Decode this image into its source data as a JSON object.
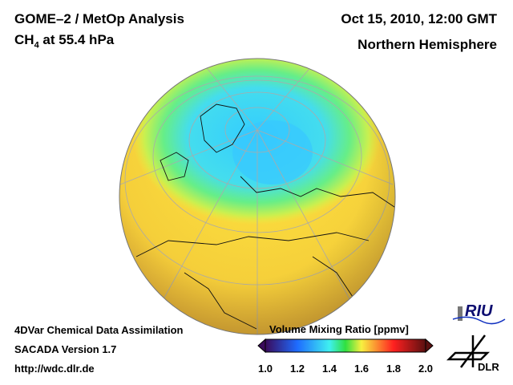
{
  "header": {
    "title_line1": "GOME–2 / MetOp Analysis",
    "species": "CH",
    "species_sub": "4",
    "level": " at 55.4 hPa",
    "date": "Oct 15, 2010, 12:00 GMT",
    "region": "Northern Hemisphere"
  },
  "footer": {
    "line1": "4DVar Chemical Data Assimilation",
    "line2": "SACADA Version 1.7",
    "line3": "http://wdc.dlr.de"
  },
  "colorbar": {
    "title": "Volume Mixing Ratio [ppmv]",
    "ticks": [
      "1.0",
      "1.2",
      "1.4",
      "1.6",
      "1.8",
      "2.0"
    ],
    "range": [
      1.0,
      2.0
    ]
  },
  "logos": {
    "riu": "RIU",
    "dlr": "DLR"
  }
}
